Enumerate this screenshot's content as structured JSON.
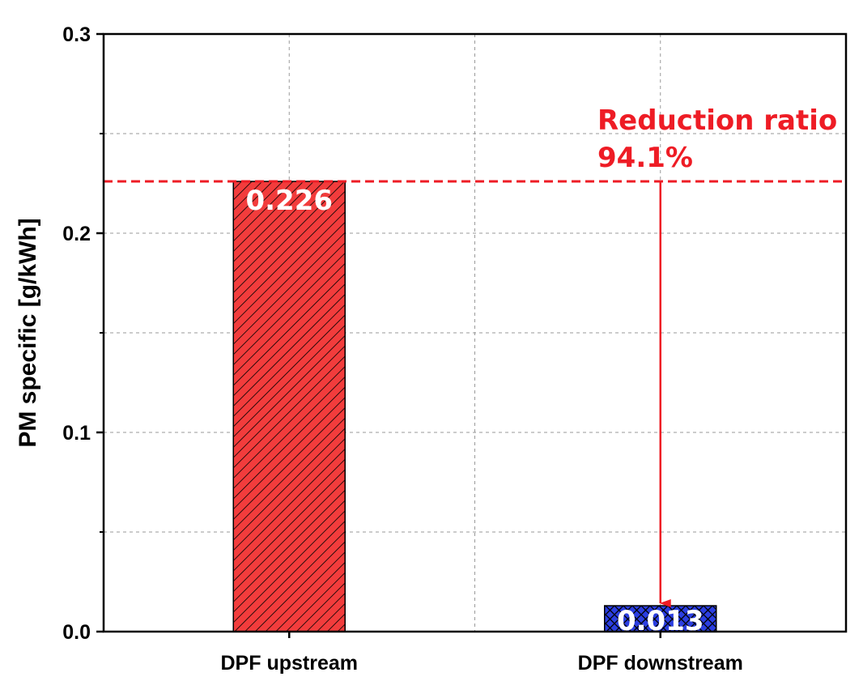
{
  "colors": {
    "upstream": "#f23c3c",
    "downstream": "#2b3ee0",
    "annotation": "#ee1c25",
    "grid": "#9a9a9a"
  },
  "chart_data": {
    "type": "bar",
    "categories": [
      "DPF upstream",
      "DPF downstream"
    ],
    "values": [
      0.226,
      0.013
    ],
    "value_labels": [
      "0.226",
      "0.013"
    ],
    "patterns": [
      "diagonal-hatch",
      "cross-hatch"
    ],
    "xlabel": "",
    "ylabel": "PM specific [g/kWh]",
    "ylim": [
      0,
      0.3
    ],
    "yticks": [
      0.0,
      0.1,
      0.2,
      0.3
    ],
    "ytick_labels": [
      "0.0",
      "0.1",
      "0.2",
      "0.3"
    ],
    "minor_yticks": [
      0.05,
      0.15,
      0.25
    ],
    "grid": true,
    "reference_line": {
      "value": 0.226,
      "style": "dashed"
    },
    "annotation": {
      "line1": "Reduction ratio",
      "line2": "94.1%"
    }
  }
}
